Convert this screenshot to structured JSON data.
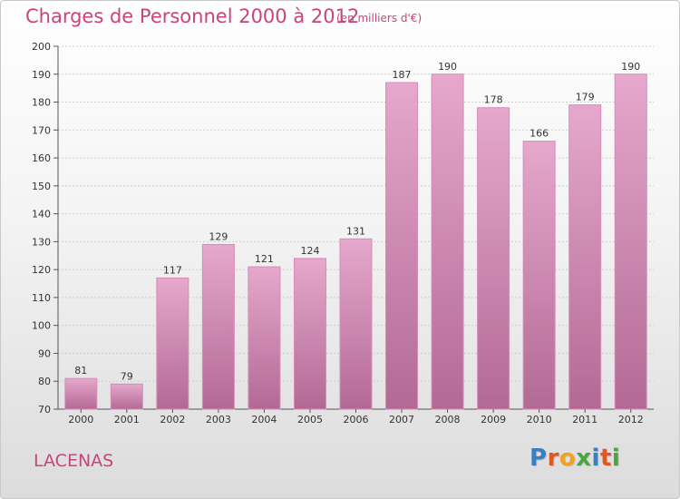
{
  "page": {
    "title": "Charges de Personnel 2000 à 2012",
    "subtitle": "(en milliers d'€)",
    "commune": "LACENAS",
    "logo_text": "Proxiti"
  },
  "colors": {
    "title": "#c8447a",
    "bar_top": "#e6a8cc",
    "bar_bottom": "#b26a95",
    "bar_edge": "#d98bb8",
    "grid": "#cfcfcf",
    "logo": [
      "#3a7fc4",
      "#e2571f",
      "#f0a323",
      "#4aa53f",
      "#3a7fc4",
      "#e2571f",
      "#4aa53f"
    ]
  },
  "chart_data": {
    "type": "bar",
    "title": "Charges de Personnel 2000 à 2012",
    "subtitle": "(en milliers d'€)",
    "xlabel": "",
    "ylabel": "",
    "ylim": [
      70,
      200
    ],
    "ytick_step": 10,
    "grid": true,
    "categories": [
      "2000",
      "2001",
      "2002",
      "2003",
      "2004",
      "2005",
      "2006",
      "2007",
      "2008",
      "2009",
      "2010",
      "2011",
      "2012"
    ],
    "values": [
      81,
      79,
      117,
      129,
      121,
      124,
      131,
      187,
      190,
      178,
      166,
      179,
      190
    ],
    "data_labels": [
      "81",
      "79",
      "117",
      "129",
      "121",
      "124",
      "131",
      "187",
      "190",
      "178",
      "166",
      "179",
      "190"
    ]
  }
}
